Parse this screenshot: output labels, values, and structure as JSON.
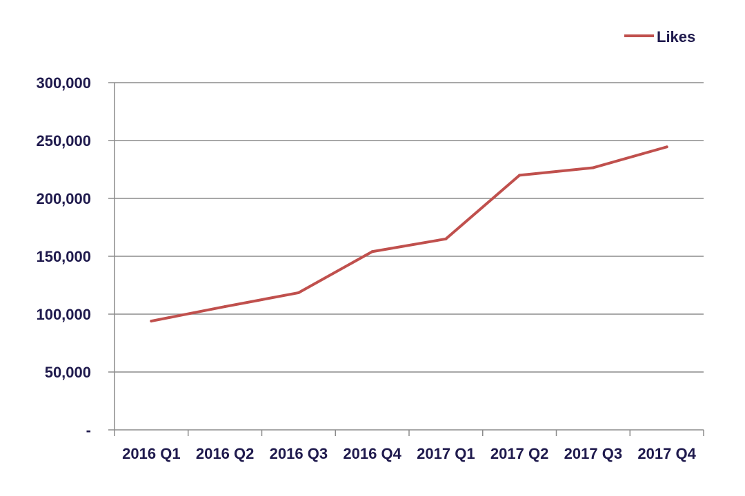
{
  "colors": {
    "series": "#C0504D",
    "text": "#1F1A4D",
    "grid": "#8C8C8C",
    "background": "#FFFFFF"
  },
  "chart_data": {
    "type": "line",
    "categories": [
      "2016 Q1",
      "2016 Q2",
      "2016 Q3",
      "2016 Q4",
      "2017 Q1",
      "2017 Q2",
      "2017 Q3",
      "2017 Q4"
    ],
    "series": [
      {
        "name": "Likes",
        "values": [
          94000,
          106500,
          118500,
          154000,
          165000,
          220000,
          226500,
          244500
        ]
      }
    ],
    "yticks": [
      0,
      50000,
      100000,
      150000,
      200000,
      250000,
      300000
    ],
    "ytick_labels": [
      "-",
      "50,000",
      "100,000",
      "150,000",
      "200,000",
      "250,000",
      "300,000"
    ],
    "ylim": [
      0,
      300000
    ],
    "grid": true,
    "legend": "top-right"
  }
}
